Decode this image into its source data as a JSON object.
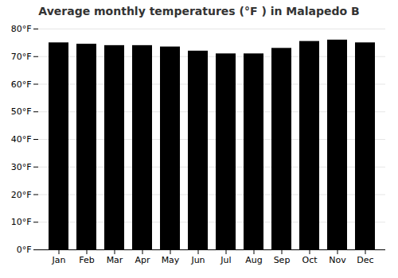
{
  "chart_data": {
    "type": "bar",
    "title": "Average monthly temperatures (°F ) in Malapedo B",
    "categories": [
      "Jan",
      "Feb",
      "Mar",
      "Apr",
      "May",
      "Jun",
      "Jul",
      "Aug",
      "Sep",
      "Oct",
      "Nov",
      "Dec"
    ],
    "values": [
      75.0,
      74.5,
      74.0,
      74.0,
      73.5,
      72.0,
      71.0,
      71.0,
      73.0,
      75.5,
      76.0,
      75.0
    ],
    "ylim": [
      0,
      80
    ],
    "yticks": [
      {
        "value": 0,
        "label": "0°F"
      },
      {
        "value": 10,
        "label": "10°F"
      },
      {
        "value": 20,
        "label": "20°F"
      },
      {
        "value": 30,
        "label": "30°F"
      },
      {
        "value": 40,
        "label": "40°F"
      },
      {
        "value": 50,
        "label": "50°F"
      },
      {
        "value": 60,
        "label": "60°F"
      },
      {
        "value": 70,
        "label": "70°F"
      },
      {
        "value": 80,
        "label": "80°F"
      }
    ],
    "grid": true
  }
}
